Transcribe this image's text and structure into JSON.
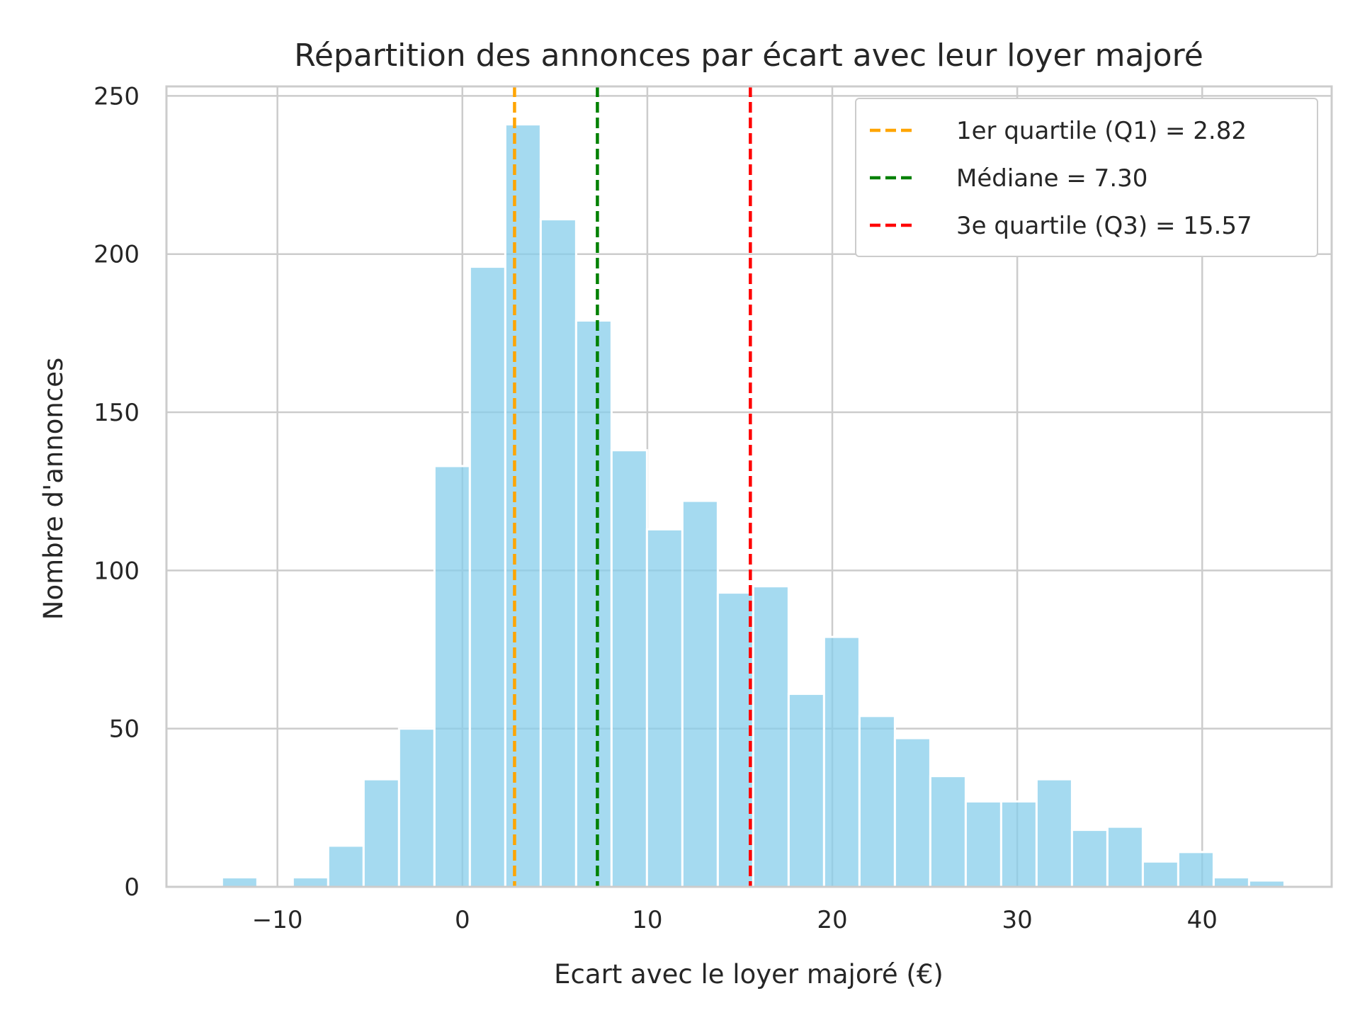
{
  "chart_data": {
    "type": "bar",
    "title": "Répartition des annonces par écart avec leur loyer majoré",
    "xlabel": "Ecart avec le loyer majoré (€)",
    "ylabel": "Nombre d'annonces",
    "xlim": [
      -16,
      47
    ],
    "ylim": [
      0,
      253
    ],
    "xticks": [
      -10,
      0,
      10,
      20,
      30,
      40
    ],
    "xtick_labels": [
      "−10",
      "0",
      "10",
      "20",
      "30",
      "40"
    ],
    "yticks": [
      0,
      50,
      100,
      150,
      200,
      250
    ],
    "ytick_labels": [
      "0",
      "50",
      "100",
      "150",
      "200",
      "250"
    ],
    "grid": true,
    "bar_color": "#87ceeb",
    "bins": {
      "start": -13,
      "width": 1.915,
      "counts": [
        3,
        0,
        3,
        13,
        34,
        50,
        133,
        196,
        241,
        211,
        179,
        138,
        113,
        122,
        93,
        95,
        61,
        79,
        54,
        47,
        35,
        27,
        27,
        34,
        18,
        19,
        8,
        11,
        3,
        2
      ]
    },
    "reference_lines": [
      {
        "label": "1er quartile (Q1) = 2.82",
        "x": 2.82,
        "color": "#ffa500"
      },
      {
        "label": "Médiane = 7.30",
        "x": 7.3,
        "color": "#008000"
      },
      {
        "label": "3e quartile (Q3) = 15.57",
        "x": 15.57,
        "color": "#ff0000"
      }
    ],
    "legend_position": "top-right"
  }
}
